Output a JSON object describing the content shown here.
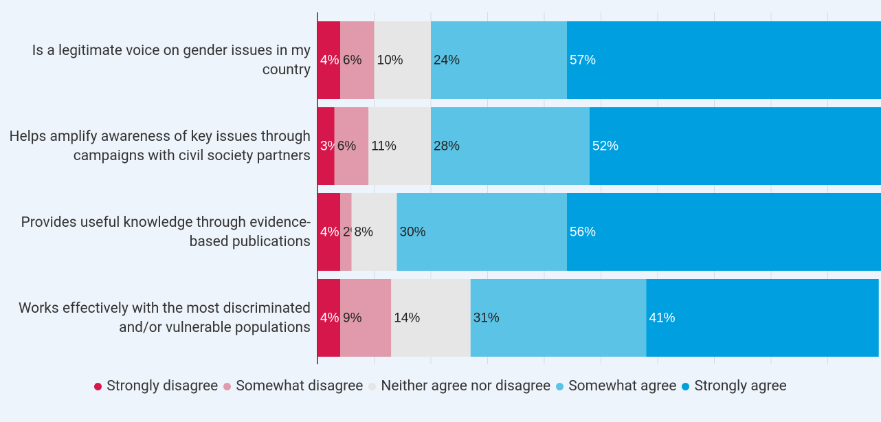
{
  "chart_data": {
    "type": "stacked_bar_horizontal",
    "categories": [
      "Is a legitimate voice on gender issues in my country",
      "Helps amplify awareness of key issues through campaigns with civil society partners",
      "Provides useful knowledge through evidence-based publications",
      "Works effectively with the most discriminated and/or vulnerable populations"
    ],
    "series": [
      {
        "name": "Strongly disagree",
        "color": "#d6174b",
        "values": [
          4,
          3,
          4,
          4
        ],
        "value_labels": [
          "4%",
          "3%",
          "4%",
          "4%"
        ]
      },
      {
        "name": "Somewhat disagree",
        "color": "#e09aab",
        "values": [
          6,
          6,
          2,
          9
        ],
        "value_labels": [
          "6%",
          "6%",
          "2%",
          "9%"
        ]
      },
      {
        "name": "Neither agree nor disagree",
        "color": "#e6e6e6",
        "values": [
          10,
          11,
          8,
          14
        ],
        "value_labels": [
          "10%",
          "11%",
          "8%",
          "14%"
        ]
      },
      {
        "name": "Somewhat agree",
        "color": "#5bc3e6",
        "values": [
          24,
          28,
          30,
          31
        ],
        "value_labels": [
          "24%",
          "28%",
          "30%",
          "31%"
        ]
      },
      {
        "name": "Strongly agree",
        "color": "#009fe0",
        "values": [
          57,
          52,
          56,
          41
        ],
        "value_labels": [
          "57%",
          "52%",
          "56%",
          "41%"
        ]
      }
    ],
    "xlim": [
      0,
      100
    ],
    "xticks": [
      0,
      10,
      20,
      30,
      40,
      50,
      60,
      70,
      80,
      90,
      100
    ],
    "grid": true,
    "legend": "bottom"
  }
}
